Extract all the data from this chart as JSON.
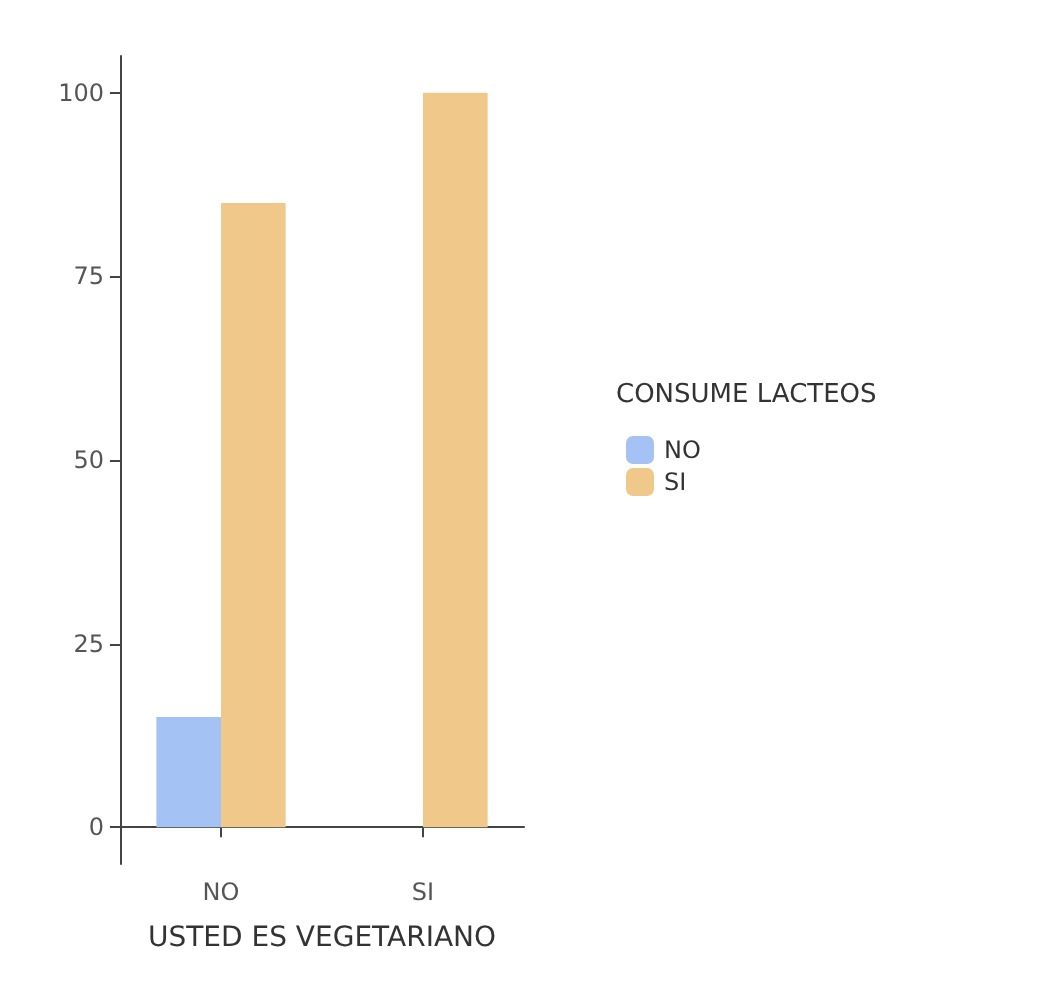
{
  "chart_data": {
    "type": "bar",
    "xlabel": "USTED ES VEGETARIANO",
    "legend_title": "CONSUME LACTEOS",
    "categories": [
      "NO",
      "SI"
    ],
    "series": [
      {
        "name": "NO",
        "color": "#a4c2f4",
        "values": [
          15,
          null
        ]
      },
      {
        "name": "SI",
        "color": "#f0c98a",
        "values": [
          85,
          100
        ]
      }
    ],
    "ylim": [
      -5,
      105
    ],
    "yticks": [
      0,
      25,
      50,
      75,
      100
    ],
    "grid": false,
    "legend": "right"
  }
}
